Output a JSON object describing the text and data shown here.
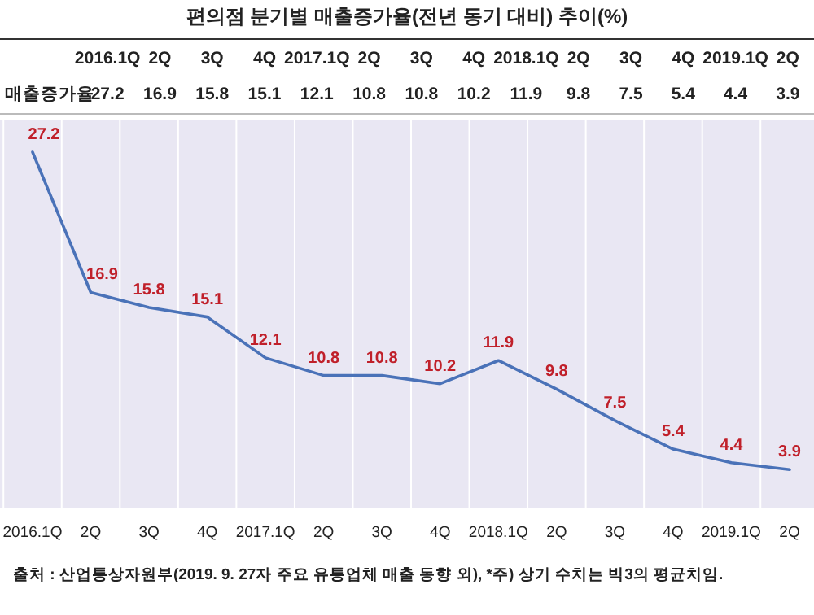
{
  "chart_data": [
    {
      "type": "other",
      "title": "편의점 분기별 매출증가율(전년 동기 대비) 추이(%)",
      "annotations": [
        "2016.1Q",
        "2Q",
        "3Q",
        "4Q",
        "2017.1Q",
        "2Q",
        "3Q",
        "4Q",
        "2018.1Q",
        "2Q",
        "3Q",
        "4Q",
        "2019.1Q",
        "2Q",
        "매출증가율",
        "27.2",
        "16.9",
        "15.8",
        "15.1",
        "12.1",
        "10.8",
        "10.8",
        "10.2",
        "11.9",
        "9.8",
        "7.5",
        "5.4",
        "4.4",
        "3.9"
      ]
    },
    {
      "type": "line",
      "categories": [
        "2016.1Q",
        "2Q",
        "3Q",
        "4Q",
        "2017.1Q",
        "2Q",
        "3Q",
        "4Q",
        "2018.1Q",
        "2Q",
        "3Q",
        "4Q",
        "2019.1Q",
        "2Q"
      ],
      "series": [
        {
          "color": "#4a72b8",
          "values": [
            27.2,
            16.9,
            15.8,
            15.1,
            12.1,
            10.8,
            10.8,
            10.2,
            11.9,
            9.8,
            7.5,
            5.4,
            4.4,
            3.9
          ]
        }
      ],
      "data_labels": true,
      "grid": "x",
      "legend": false,
      "marker": "none",
      "line_style": "solid",
      "tick_labels": "x",
      "annotations": [
        "출처 : 산업통상자원부(2019. 9. 27자 주요 유통업체 매출 동향 외), *주) 상기 수치는 빅3의 평균치임."
      ]
    }
  ]
}
